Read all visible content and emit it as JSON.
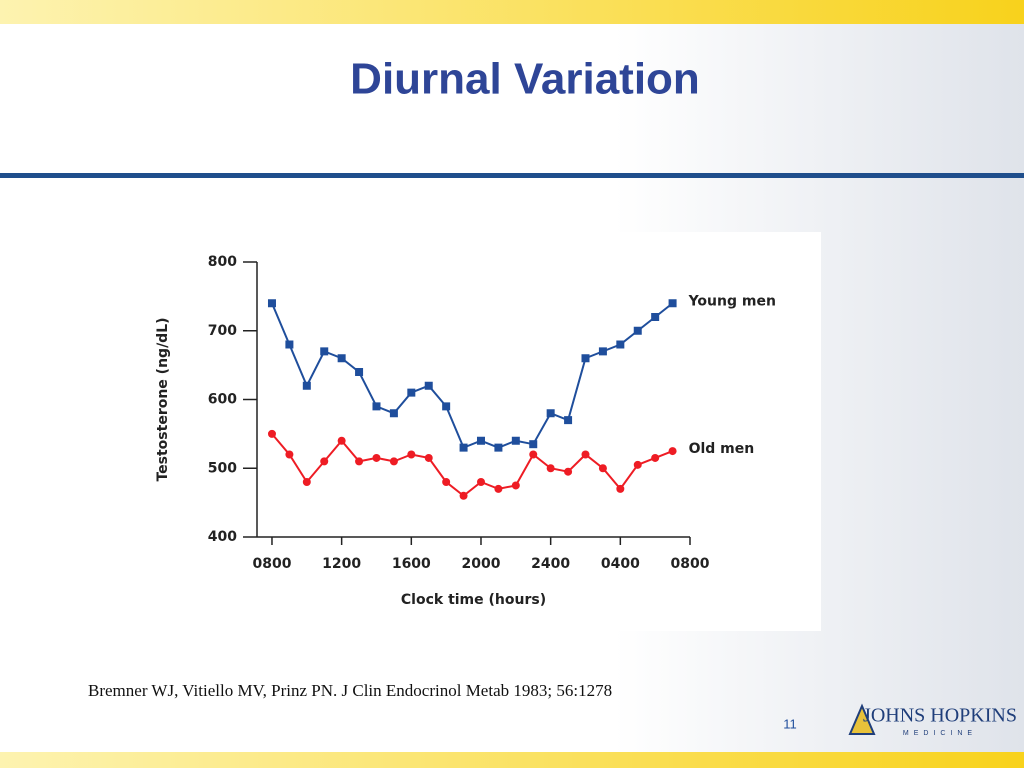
{
  "slide": {
    "title": "Diurnal Variation",
    "citation": "Bremner WJ, Vitiello MV, Prinz PN. J Clin Endocrinol Metab 1983; 56:1278",
    "page_number": "11",
    "logo": "JOHNS HOPKINS",
    "logo_sub": "MEDICINE"
  },
  "chart_data": {
    "type": "line",
    "x_label": "Clock time (hours)",
    "y_label": "Testosterone (ng/dL)",
    "x": [
      8,
      9,
      10,
      11,
      12,
      13,
      14,
      15,
      16,
      17,
      18,
      19,
      20,
      21,
      22,
      23,
      24,
      25,
      26,
      27,
      28,
      29,
      30,
      31
    ],
    "xlim": [
      7.14,
      32
    ],
    "xticks": [
      {
        "value": 8,
        "label": "0800"
      },
      {
        "value": 12,
        "label": "1200"
      },
      {
        "value": 16,
        "label": "1600"
      },
      {
        "value": 20,
        "label": "2000"
      },
      {
        "value": 24,
        "label": "2400"
      },
      {
        "value": 28,
        "label": "0400"
      },
      {
        "value": 32,
        "label": "0800"
      }
    ],
    "ylim": [
      400,
      800
    ],
    "yticks": [
      400,
      500,
      600,
      700,
      800
    ],
    "series": [
      {
        "name": "Young men",
        "color": "#1f4e9c",
        "marker": "square",
        "values": [
          740,
          680,
          620,
          670,
          660,
          640,
          590,
          580,
          610,
          620,
          590,
          530,
          540,
          530,
          540,
          535,
          580,
          570,
          660,
          670,
          680,
          700,
          720,
          740
        ]
      },
      {
        "name": "Old men",
        "color": "#ee1c24",
        "marker": "circle",
        "values": [
          550,
          520,
          480,
          510,
          540,
          510,
          515,
          510,
          520,
          515,
          480,
          460,
          480,
          470,
          475,
          520,
          500,
          495,
          520,
          500,
          470,
          505,
          515,
          525
        ]
      }
    ]
  }
}
